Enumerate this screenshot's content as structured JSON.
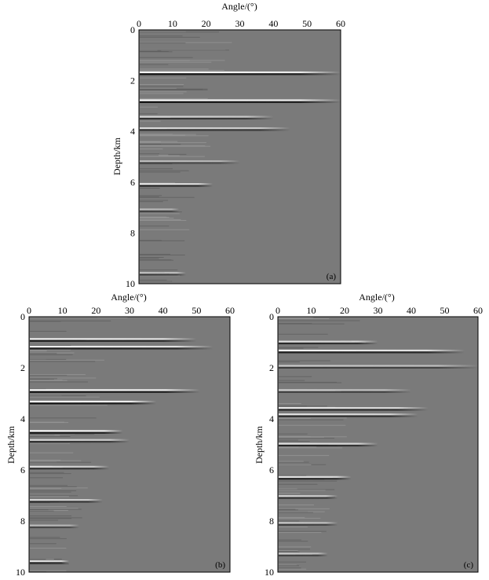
{
  "colors": {
    "background": "#7a7a7a",
    "frame": "#000000",
    "bright": "#f4f4f4",
    "dark": "#1e1e1e"
  },
  "chart_data": [
    {
      "type": "heatmap",
      "panel": "(a)",
      "xlabel": "Angle/(°)",
      "ylabel": "Depth/km",
      "xlim": [
        0,
        60
      ],
      "ylim": [
        0,
        10
      ],
      "x_ticks": [
        "0",
        "10",
        "20",
        "30",
        "40",
        "50",
        "60"
      ],
      "y_ticks": [
        "0",
        "2",
        "4",
        "6",
        "8",
        "10"
      ],
      "events": [
        {
          "depth": 1.7,
          "max_angle": 60,
          "strength": 1.0
        },
        {
          "depth": 2.8,
          "max_angle": 60,
          "strength": 1.0
        },
        {
          "depth": 3.45,
          "max_angle": 40,
          "strength": 0.7
        },
        {
          "depth": 3.9,
          "max_angle": 45,
          "strength": 0.7
        },
        {
          "depth": 5.2,
          "max_angle": 30,
          "strength": 0.5
        },
        {
          "depth": 6.1,
          "max_angle": 22,
          "strength": 0.8
        },
        {
          "depth": 7.1,
          "max_angle": 12,
          "strength": 0.5
        },
        {
          "depth": 9.6,
          "max_angle": 14,
          "strength": 0.6
        }
      ]
    },
    {
      "type": "heatmap",
      "panel": "(b)",
      "xlabel": "Angle/(°)",
      "ylabel": "Depth/km",
      "xlim": [
        0,
        60
      ],
      "ylim": [
        0,
        10
      ],
      "x_ticks": [
        "0",
        "10",
        "20",
        "30",
        "40",
        "50",
        "60"
      ],
      "y_ticks": [
        "0",
        "2",
        "4",
        "6",
        "8",
        "10"
      ],
      "events": [
        {
          "depth": 0.9,
          "max_angle": 50,
          "strength": 0.9
        },
        {
          "depth": 1.2,
          "max_angle": 55,
          "strength": 0.9
        },
        {
          "depth": 2.9,
          "max_angle": 51,
          "strength": 1.0
        },
        {
          "depth": 3.35,
          "max_angle": 38,
          "strength": 1.0
        },
        {
          "depth": 4.5,
          "max_angle": 28,
          "strength": 1.0
        },
        {
          "depth": 4.85,
          "max_angle": 30,
          "strength": 0.7
        },
        {
          "depth": 5.9,
          "max_angle": 24,
          "strength": 0.7
        },
        {
          "depth": 7.2,
          "max_angle": 22,
          "strength": 0.7
        },
        {
          "depth": 8.2,
          "max_angle": 15,
          "strength": 0.5
        },
        {
          "depth": 9.6,
          "max_angle": 12,
          "strength": 0.8
        }
      ]
    },
    {
      "type": "heatmap",
      "panel": "(c)",
      "xlabel": "Angle/(°)",
      "ylabel": "Depth/km",
      "xlim": [
        0,
        60
      ],
      "ylim": [
        0,
        10
      ],
      "x_ticks": [
        "0",
        "10",
        "20",
        "30",
        "40",
        "50",
        "60"
      ],
      "y_ticks": [
        "0",
        "2",
        "4",
        "6",
        "8",
        "10"
      ],
      "events": [
        {
          "depth": 1.0,
          "max_angle": 30,
          "strength": 0.8
        },
        {
          "depth": 1.35,
          "max_angle": 56,
          "strength": 0.9
        },
        {
          "depth": 1.95,
          "max_angle": 60,
          "strength": 0.6
        },
        {
          "depth": 2.9,
          "max_angle": 40,
          "strength": 0.6
        },
        {
          "depth": 3.6,
          "max_angle": 45,
          "strength": 0.8
        },
        {
          "depth": 3.85,
          "max_angle": 42,
          "strength": 0.8
        },
        {
          "depth": 5.0,
          "max_angle": 30,
          "strength": 0.8
        },
        {
          "depth": 6.3,
          "max_angle": 22,
          "strength": 0.8
        },
        {
          "depth": 7.05,
          "max_angle": 18,
          "strength": 0.7
        },
        {
          "depth": 8.1,
          "max_angle": 18,
          "strength": 0.6
        },
        {
          "depth": 9.3,
          "max_angle": 15,
          "strength": 0.6
        }
      ]
    }
  ]
}
